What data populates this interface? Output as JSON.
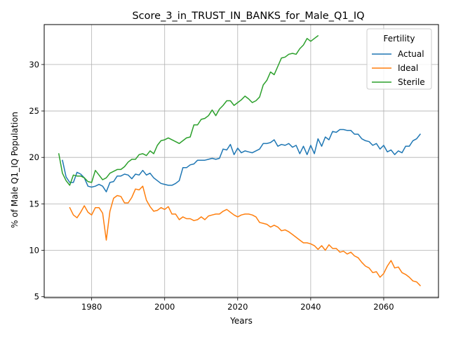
{
  "chart_data": {
    "type": "line",
    "title": "Score_3_in_TRUST_IN_BANKS_for_Male_Q1_IQ",
    "xlabel": "Years",
    "ylabel": "% of Male Q1_IQ Population",
    "xlim": [
      1967,
      2075
    ],
    "ylim": [
      4.9,
      34.3
    ],
    "xticks": [
      1980,
      2000,
      2020,
      2040,
      2060
    ],
    "yticks": [
      5,
      10,
      15,
      20,
      25,
      30
    ],
    "grid": true,
    "legend": {
      "title": "Fertility",
      "placement": "top-right"
    },
    "series": [
      {
        "name": "Actual",
        "color": "#1f77b4",
        "x": [
          1972,
          1973,
          1974,
          1975,
          1976,
          1977,
          1978,
          1979,
          1980,
          1981,
          1982,
          1983,
          1984,
          1985,
          1986,
          1987,
          1988,
          1989,
          1990,
          1991,
          1992,
          1993,
          1994,
          1995,
          1996,
          1997,
          1998,
          1999,
          2000,
          2001,
          2002,
          2003,
          2004,
          2005,
          2006,
          2007,
          2008,
          2009,
          2010,
          2011,
          2012,
          2013,
          2014,
          2015,
          2016,
          2017,
          2018,
          2019,
          2020,
          2021,
          2022,
          2023,
          2024,
          2025,
          2026,
          2027,
          2028,
          2029,
          2030,
          2031,
          2032,
          2033,
          2034,
          2035,
          2036,
          2037,
          2038,
          2039,
          2040,
          2041,
          2042,
          2043,
          2044,
          2045,
          2046,
          2047,
          2048,
          2049,
          2050,
          2051,
          2052,
          2053,
          2054,
          2055,
          2056,
          2057,
          2058,
          2059,
          2060,
          2061,
          2062,
          2063,
          2064,
          2065,
          2066,
          2067,
          2068,
          2069,
          2070
        ],
        "values": [
          19.7,
          17.9,
          17.3,
          17.3,
          18.4,
          18.2,
          17.8,
          16.9,
          16.8,
          16.9,
          17.1,
          16.9,
          16.3,
          17.3,
          17.4,
          18.0,
          18.0,
          18.2,
          18.1,
          17.7,
          18.2,
          18.1,
          18.6,
          18.1,
          18.3,
          17.8,
          17.5,
          17.2,
          17.1,
          17.0,
          17.0,
          17.2,
          17.5,
          18.9,
          18.9,
          19.2,
          19.3,
          19.7,
          19.7,
          19.7,
          19.8,
          19.9,
          19.8,
          19.9,
          20.9,
          20.8,
          21.4,
          20.3,
          21.0,
          20.5,
          20.7,
          20.6,
          20.5,
          20.7,
          20.9,
          21.5,
          21.5,
          21.6,
          21.9,
          21.2,
          21.4,
          21.3,
          21.5,
          21.1,
          21.3,
          20.4,
          21.2,
          20.3,
          21.3,
          20.4,
          22.0,
          21.2,
          22.2,
          21.9,
          22.8,
          22.7,
          23.0,
          23.0,
          22.9,
          22.9,
          22.5,
          22.5,
          22.0,
          21.8,
          21.7,
          21.3,
          21.5,
          20.9,
          21.3,
          20.6,
          20.8,
          20.3,
          20.7,
          20.5,
          21.2,
          21.2,
          21.8,
          22.0,
          22.5
        ]
      },
      {
        "name": "Ideal",
        "color": "#ff7f0e",
        "x": [
          1974,
          1975,
          1976,
          1977,
          1978,
          1979,
          1980,
          1981,
          1982,
          1983,
          1984,
          1985,
          1986,
          1987,
          1988,
          1989,
          1990,
          1991,
          1992,
          1993,
          1994,
          1995,
          1996,
          1997,
          1998,
          1999,
          2000,
          2001,
          2002,
          2003,
          2004,
          2005,
          2006,
          2007,
          2008,
          2009,
          2010,
          2011,
          2012,
          2013,
          2014,
          2015,
          2016,
          2017,
          2018,
          2019,
          2020,
          2021,
          2022,
          2023,
          2024,
          2025,
          2026,
          2027,
          2028,
          2029,
          2030,
          2031,
          2032,
          2033,
          2034,
          2035,
          2036,
          2037,
          2038,
          2039,
          2040,
          2041,
          2042,
          2043,
          2044,
          2045,
          2046,
          2047,
          2048,
          2049,
          2050,
          2051,
          2052,
          2053,
          2054,
          2055,
          2056,
          2057,
          2058,
          2059,
          2060,
          2061,
          2062,
          2063,
          2064,
          2065,
          2066,
          2067,
          2068,
          2069,
          2070
        ],
        "values": [
          14.6,
          13.8,
          13.5,
          14.1,
          14.8,
          14.1,
          13.8,
          14.6,
          14.6,
          14.0,
          11.1,
          14.2,
          15.6,
          15.9,
          15.8,
          15.1,
          15.1,
          15.7,
          16.6,
          16.5,
          16.9,
          15.4,
          14.7,
          14.2,
          14.3,
          14.6,
          14.4,
          14.7,
          13.9,
          13.9,
          13.3,
          13.6,
          13.4,
          13.4,
          13.2,
          13.3,
          13.6,
          13.3,
          13.7,
          13.8,
          13.9,
          13.9,
          14.2,
          14.4,
          14.1,
          13.8,
          13.6,
          13.8,
          13.9,
          13.9,
          13.8,
          13.6,
          13.0,
          12.9,
          12.8,
          12.5,
          12.7,
          12.5,
          12.1,
          12.2,
          12.0,
          11.7,
          11.4,
          11.1,
          10.8,
          10.8,
          10.7,
          10.5,
          10.1,
          10.5,
          10.0,
          10.6,
          10.2,
          10.2,
          9.8,
          9.9,
          9.6,
          9.8,
          9.4,
          9.2,
          8.7,
          8.3,
          8.1,
          7.6,
          7.7,
          7.1,
          7.5,
          8.3,
          8.9,
          8.1,
          8.2,
          7.6,
          7.4,
          7.1,
          6.7,
          6.6,
          6.2
        ]
      },
      {
        "name": "Sterile",
        "color": "#2ca02c",
        "x": [
          1971,
          1972,
          1973,
          1974,
          1975,
          1976,
          1977,
          1978,
          1979,
          1980,
          1981,
          1982,
          1983,
          1984,
          1985,
          1986,
          1987,
          1988,
          1989,
          1990,
          1991,
          1992,
          1993,
          1994,
          1995,
          1996,
          1997,
          1998,
          1999,
          2000,
          2001,
          2002,
          2003,
          2004,
          2005,
          2006,
          2007,
          2008,
          2009,
          2010,
          2011,
          2012,
          2013,
          2014,
          2015,
          2016,
          2017,
          2018,
          2019,
          2020,
          2021,
          2022,
          2023,
          2024,
          2025,
          2026,
          2027,
          2028,
          2029,
          2030,
          2031,
          2032,
          2033,
          2034,
          2035,
          2036,
          2037,
          2038,
          2039,
          2040,
          2041,
          2042
        ],
        "values": [
          20.4,
          18.3,
          17.5,
          17.0,
          18.1,
          18.0,
          18.0,
          17.8,
          17.4,
          17.3,
          18.6,
          18.1,
          17.6,
          17.8,
          18.3,
          18.5,
          18.7,
          18.7,
          19.0,
          19.5,
          19.8,
          19.8,
          20.3,
          20.4,
          20.2,
          20.7,
          20.4,
          21.3,
          21.8,
          21.9,
          22.1,
          21.9,
          21.7,
          21.5,
          21.8,
          22.1,
          22.2,
          23.5,
          23.5,
          24.1,
          24.2,
          24.5,
          25.1,
          24.5,
          25.2,
          25.6,
          26.1,
          26.1,
          25.6,
          25.9,
          26.2,
          26.6,
          26.3,
          25.9,
          26.1,
          26.5,
          27.8,
          28.3,
          29.2,
          28.9,
          29.8,
          30.7,
          30.8,
          31.1,
          31.2,
          31.1,
          31.7,
          32.1,
          32.8,
          32.5,
          32.8,
          33.1
        ]
      }
    ]
  }
}
